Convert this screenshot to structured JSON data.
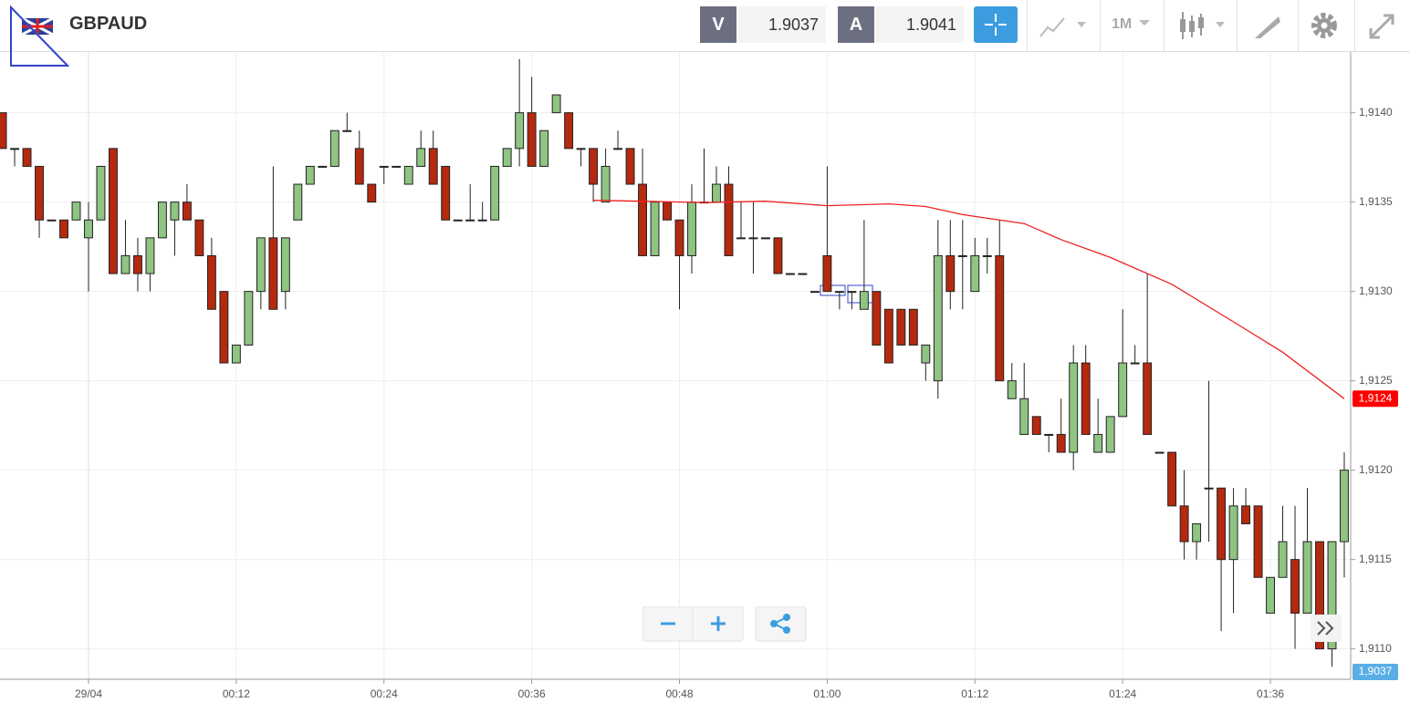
{
  "header": {
    "symbol": "GBPAUD",
    "bid_tag": "V",
    "bid": "1.9037",
    "ask_tag": "A",
    "ask": "1.9041",
    "period": "1M"
  },
  "chart_data": {
    "type": "candlestick",
    "x": [
      -7,
      -6,
      -5,
      -4,
      -3,
      -2,
      -1,
      0,
      1,
      2,
      3,
      4,
      5,
      6,
      7,
      8,
      9,
      10,
      11,
      12,
      13,
      14,
      15,
      16,
      17,
      18,
      19,
      20,
      21,
      22,
      23,
      24,
      25,
      26,
      27,
      28,
      29,
      30,
      31,
      32,
      33,
      34,
      35,
      36,
      37,
      38,
      39,
      40,
      41,
      42,
      43,
      44,
      45,
      46,
      47,
      48,
      49,
      50,
      51,
      52,
      53,
      54,
      55,
      56,
      57,
      58,
      59,
      60,
      61,
      62,
      63,
      64,
      65,
      66,
      67,
      68,
      69,
      70,
      71,
      72,
      73,
      74,
      75,
      76,
      77,
      78,
      79,
      80,
      81,
      82,
      83,
      84,
      85,
      86,
      87,
      88,
      89,
      90,
      91,
      92,
      93,
      94,
      95,
      96,
      97,
      98,
      99,
      100,
      101,
      102
    ],
    "open": [
      1.914,
      1.9138,
      1.9138,
      1.9137,
      1.9134,
      1.9134,
      1.9134,
      1.9133,
      1.9134,
      1.9138,
      1.9131,
      1.9132,
      1.9131,
      1.9133,
      1.9134,
      1.9135,
      1.9134,
      1.9132,
      1.913,
      1.9126,
      1.9127,
      1.913,
      1.9133,
      1.913,
      1.9134,
      1.9136,
      1.9137,
      1.9137,
      1.9139,
      1.9138,
      1.9136,
      1.9137,
      1.9137,
      1.9136,
      1.9137,
      1.9138,
      1.9137,
      1.9134,
      1.9134,
      1.9134,
      1.9134,
      1.9137,
      1.9138,
      1.914,
      1.9137,
      1.914,
      1.914,
      1.9138,
      1.9138,
      1.9135,
      1.9138,
      1.9138,
      1.9136,
      1.9132,
      1.9135,
      1.9134,
      1.9132,
      1.9135,
      1.9135,
      1.9136,
      1.9133,
      1.9133,
      1.9133,
      1.9133,
      1.9131,
      1.9131,
      1.913,
      1.9132,
      1.913,
      1.913,
      1.9129,
      1.913,
      1.9129,
      1.9129,
      1.9129,
      1.9126,
      1.9125,
      1.9132,
      1.9132,
      1.913,
      1.9132,
      1.9132,
      1.9124,
      1.9122,
      1.9123,
      1.9122,
      1.9122,
      1.9121,
      1.9126,
      1.9121,
      1.9121,
      1.9123,
      1.9126,
      1.9126,
      1.9121,
      1.9121,
      1.9118,
      1.9116,
      1.9119,
      1.9119,
      1.9115,
      1.9118,
      1.9118,
      1.9112,
      1.9114,
      1.9115,
      1.9112,
      1.9116,
      1.911,
      1.9116
    ],
    "high": [
      1.914,
      1.9138,
      1.9138,
      1.9137,
      1.9134,
      1.9134,
      1.9135,
      1.9135,
      1.9137,
      1.9138,
      1.9134,
      1.9133,
      1.9133,
      1.9135,
      1.9135,
      1.9136,
      1.9134,
      1.9133,
      1.913,
      1.9127,
      1.913,
      1.9133,
      1.9137,
      1.9133,
      1.9136,
      1.9137,
      1.9137,
      1.9139,
      1.914,
      1.9139,
      1.9136,
      1.9137,
      1.9137,
      1.9137,
      1.9139,
      1.9139,
      1.9137,
      1.9134,
      1.9136,
      1.9135,
      1.9137,
      1.9138,
      1.9143,
      1.9142,
      1.9139,
      1.9141,
      1.914,
      1.9138,
      1.9138,
      1.9138,
      1.9139,
      1.9138,
      1.9138,
      1.9135,
      1.9135,
      1.9134,
      1.9136,
      1.9138,
      1.9137,
      1.9137,
      1.9135,
      1.9135,
      1.9133,
      1.9133,
      1.9131,
      1.9131,
      1.913,
      1.9137,
      1.913,
      1.913,
      1.9134,
      1.913,
      1.9129,
      1.9129,
      1.9129,
      1.9127,
      1.9134,
      1.9134,
      1.9134,
      1.9133,
      1.9133,
      1.9134,
      1.9126,
      1.9126,
      1.9123,
      1.9122,
      1.9124,
      1.9127,
      1.9127,
      1.9124,
      1.9123,
      1.9129,
      1.9127,
      1.9131,
      1.9121,
      1.9121,
      1.912,
      1.9117,
      1.9125,
      1.9119,
      1.9119,
      1.9119,
      1.9118,
      1.9114,
      1.9118,
      1.9118,
      1.9119,
      1.9116,
      1.9116,
      1.9121
    ],
    "low": [
      1.9138,
      1.9137,
      1.9137,
      1.9133,
      1.9134,
      1.9133,
      1.9134,
      1.913,
      1.9134,
      1.9131,
      1.9131,
      1.913,
      1.913,
      1.9133,
      1.9132,
      1.9134,
      1.9132,
      1.9129,
      1.9126,
      1.9126,
      1.9127,
      1.9129,
      1.9129,
      1.9129,
      1.9134,
      1.9136,
      1.9137,
      1.9137,
      1.9139,
      1.9136,
      1.9135,
      1.9136,
      1.9137,
      1.9136,
      1.9137,
      1.9136,
      1.9134,
      1.9134,
      1.9134,
      1.9134,
      1.9134,
      1.9137,
      1.9137,
      1.9137,
      1.9137,
      1.914,
      1.9138,
      1.9137,
      1.9135,
      1.9135,
      1.9138,
      1.9136,
      1.9132,
      1.9132,
      1.9134,
      1.9129,
      1.9131,
      1.9135,
      1.9135,
      1.9132,
      1.9133,
      1.9131,
      1.9133,
      1.9131,
      1.9131,
      1.9131,
      1.913,
      1.913,
      1.9129,
      1.9129,
      1.9129,
      1.9127,
      1.9126,
      1.9127,
      1.9127,
      1.9125,
      1.9124,
      1.9129,
      1.9129,
      1.913,
      1.9131,
      1.9125,
      1.9124,
      1.9122,
      1.9122,
      1.9121,
      1.9121,
      1.912,
      1.9122,
      1.9121,
      1.9121,
      1.9123,
      1.9126,
      1.9122,
      1.9121,
      1.9118,
      1.9115,
      1.9115,
      1.9116,
      1.9111,
      1.9112,
      1.9117,
      1.9114,
      1.9112,
      1.9114,
      1.911,
      1.9112,
      1.911,
      1.9109,
      1.9114
    ],
    "close": [
      1.9138,
      1.9138,
      1.9137,
      1.9134,
      1.9134,
      1.9133,
      1.9135,
      1.9134,
      1.9137,
      1.9131,
      1.9132,
      1.9131,
      1.9133,
      1.9135,
      1.9135,
      1.9134,
      1.9132,
      1.9129,
      1.9126,
      1.9127,
      1.913,
      1.9133,
      1.9129,
      1.9133,
      1.9136,
      1.9137,
      1.9137,
      1.9139,
      1.9139,
      1.9136,
      1.9135,
      1.9137,
      1.9137,
      1.9137,
      1.9138,
      1.9136,
      1.9134,
      1.9134,
      1.9134,
      1.9134,
      1.9137,
      1.9138,
      1.914,
      1.9137,
      1.9139,
      1.9141,
      1.9138,
      1.9138,
      1.9136,
      1.9137,
      1.9138,
      1.9136,
      1.9132,
      1.9135,
      1.9134,
      1.9132,
      1.9135,
      1.9135,
      1.9136,
      1.9132,
      1.9133,
      1.9133,
      1.9133,
      1.9131,
      1.9131,
      1.9131,
      1.913,
      1.913,
      1.913,
      1.913,
      1.913,
      1.9127,
      1.9126,
      1.9127,
      1.9127,
      1.9127,
      1.9132,
      1.913,
      1.9132,
      1.9132,
      1.9132,
      1.9125,
      1.9125,
      1.9124,
      1.9122,
      1.9122,
      1.9121,
      1.9126,
      1.9122,
      1.9122,
      1.9123,
      1.9126,
      1.9126,
      1.9122,
      1.9121,
      1.9118,
      1.9116,
      1.9117,
      1.9119,
      1.9115,
      1.9118,
      1.9117,
      1.9114,
      1.9114,
      1.9116,
      1.9112,
      1.9116,
      1.911,
      1.9116,
      1.912
    ],
    "up_color": "#8fc482",
    "down_color": "#b5290f",
    "ma": {
      "color": "#f02020",
      "x": [
        41,
        45,
        50,
        55,
        60,
        65,
        68,
        71,
        76,
        79,
        83,
        88,
        93,
        97,
        102
      ],
      "values": [
        1.91351,
        1.913505,
        1.913497,
        1.913505,
        1.91348,
        1.91349,
        1.913475,
        1.91343,
        1.91338,
        1.91329,
        1.91319,
        1.91304,
        1.91283,
        1.91266,
        1.9124
      ],
      "last_label": "1,9124"
    },
    "bid_label": "1,9037",
    "xlim": [
      -7.19,
      102.52
    ],
    "ylim": [
      1.91083,
      1.91434
    ],
    "xticks": [
      {
        "value": 0,
        "label": "29/04"
      },
      {
        "value": 12,
        "label": "00:12"
      },
      {
        "value": 24,
        "label": "00:24"
      },
      {
        "value": 36,
        "label": "00:36"
      },
      {
        "value": 48,
        "label": "00:48"
      },
      {
        "value": 60,
        "label": "01:00"
      },
      {
        "value": 72,
        "label": "01:12"
      },
      {
        "value": 84,
        "label": "01:24"
      },
      {
        "value": 96,
        "label": "01:36"
      }
    ],
    "yticks": [
      {
        "value": 1.911,
        "label": "1,9110"
      },
      {
        "value": 1.9115,
        "label": "1,9115"
      },
      {
        "value": 1.912,
        "label": "1,9120"
      },
      {
        "value": 1.9125,
        "label": "1,9125"
      },
      {
        "value": 1.913,
        "label": "1,9130"
      },
      {
        "value": 1.9135,
        "label": "1,9135"
      },
      {
        "value": 1.914,
        "label": "1,9140"
      }
    ],
    "grid": true
  }
}
